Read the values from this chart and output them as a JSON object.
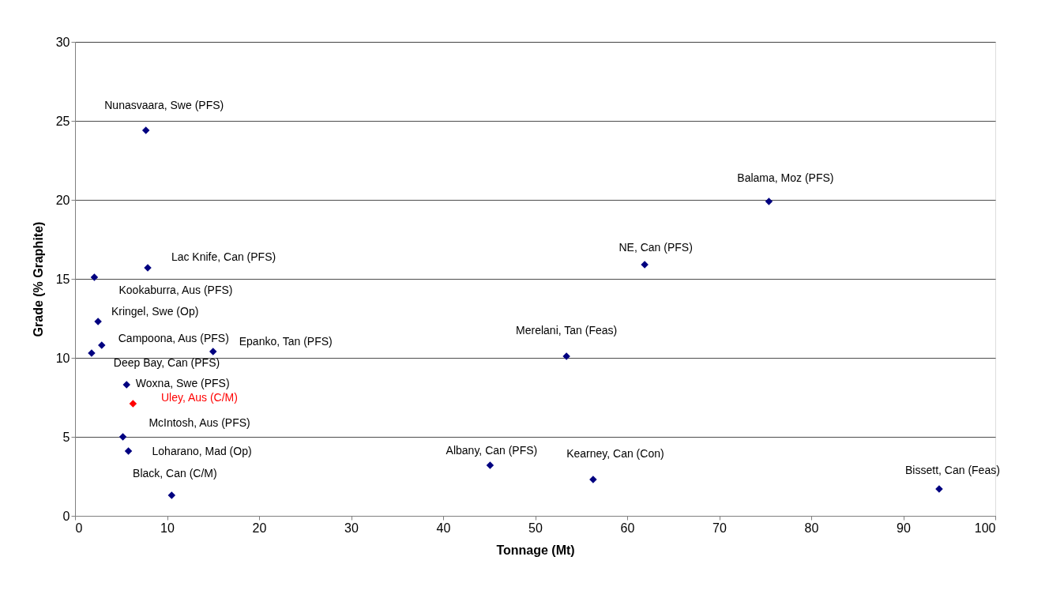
{
  "chart_data": {
    "type": "scatter",
    "xlabel": "Tonnage (Mt)",
    "ylabel": "Grade (% Graphite)",
    "x": [
      7.7,
      75.4,
      61.9,
      7.9,
      2.1,
      2.5,
      2.9,
      1.8,
      15.0,
      53.4,
      5.6,
      6.3,
      5.2,
      5.8,
      10.5,
      45.1,
      56.3,
      93.9
    ],
    "values": [
      24.4,
      19.9,
      15.9,
      15.7,
      15.1,
      12.3,
      10.8,
      10.3,
      10.4,
      10.1,
      8.3,
      7.1,
      5.0,
      4.1,
      1.3,
      3.2,
      2.3,
      1.7
    ],
    "colors": [
      "#000080",
      "#000080",
      "#000080",
      "#000080",
      "#000080",
      "#000080",
      "#000080",
      "#000080",
      "#000080",
      "#000080",
      "#000080",
      "#ff0000",
      "#000080",
      "#000080",
      "#000080",
      "#000080",
      "#000080",
      "#000080"
    ],
    "annotations": [
      {
        "text": "Nunasvaara, Swe (PFS)",
        "x": 7.7,
        "y": 24.4
      },
      {
        "text": "Balama, Moz (PFS)",
        "x": 75.4,
        "y": 19.9
      },
      {
        "text": "NE, Can (PFS)",
        "x": 61.9,
        "y": 15.9
      },
      {
        "text": "Lac Knife, Can (PFS)",
        "x": 7.9,
        "y": 15.7
      },
      {
        "text": "Kookaburra, Aus (PFS)",
        "x": 2.1,
        "y": 15.1
      },
      {
        "text": "Kringel, Swe (Op)",
        "x": 2.5,
        "y": 12.3
      },
      {
        "text": "Campoona, Aus (PFS)",
        "x": 2.9,
        "y": 10.8
      },
      {
        "text": "Deep Bay, Can (PFS)",
        "x": 1.8,
        "y": 10.3
      },
      {
        "text": "Epanko, Tan (PFS)",
        "x": 15.0,
        "y": 10.4
      },
      {
        "text": "Merelani, Tan (Feas)",
        "x": 53.4,
        "y": 10.1
      },
      {
        "text": "Woxna, Swe (PFS)",
        "x": 5.6,
        "y": 8.3
      },
      {
        "text": "Uley, Aus (C/M)",
        "x": 6.3,
        "y": 7.1
      },
      {
        "text": "McIntosh, Aus (PFS)",
        "x": 5.2,
        "y": 5.0
      },
      {
        "text": "Loharano, Mad (Op)",
        "x": 5.8,
        "y": 4.1
      },
      {
        "text": "Black, Can (C/M)",
        "x": 10.5,
        "y": 1.3
      },
      {
        "text": "Albany, Can (PFS)",
        "x": 45.1,
        "y": 3.2
      },
      {
        "text": "Kearney, Can (Con)",
        "x": 56.3,
        "y": 2.3
      },
      {
        "text": "Bissett, Can (Feas)",
        "x": 93.9,
        "y": 1.7
      }
    ],
    "xlim": [
      0,
      100
    ],
    "xticks": [
      0,
      10,
      20,
      30,
      40,
      50,
      60,
      70,
      80,
      90,
      100
    ],
    "ylim": [
      0,
      30
    ],
    "yticks": [
      0,
      5,
      10,
      15,
      20,
      25,
      30
    ],
    "grid": "y",
    "marker": "diamond"
  }
}
